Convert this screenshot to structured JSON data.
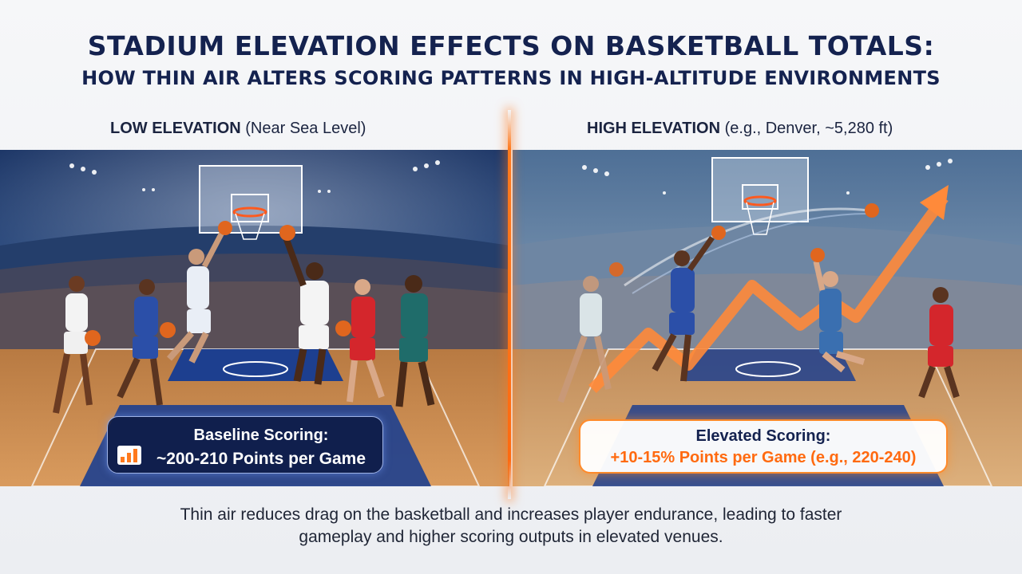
{
  "title": {
    "line1": "STADIUM ELEVATION EFFECTS ON BASKETBALL TOTALS:",
    "line2": "HOW THIN AIR ALTERS SCORING PATTERNS IN HIGH-ALTITUDE ENVIRONMENTS"
  },
  "panels": {
    "left": {
      "label_main": "LOW ELEVATION",
      "label_sub": " (Near Sea Level)",
      "stat_title": "Baseline Scoring:",
      "stat_value": "~200-210 Points per Game",
      "stat_icon": "bar-chart-icon"
    },
    "right": {
      "label_main": "HIGH ELEVATION",
      "label_sub": " (e.g., Denver, ~5,280 ft)",
      "stat_title": "Elevated Scoring:",
      "stat_value": "+10-15% Points per Game (e.g., 220-240)",
      "trend_icon": "trend-up-arrow-icon"
    }
  },
  "caption": {
    "line1": "Thin air reduces drag on the basketball and increases player endurance, leading to faster",
    "line2": "gameplay and higher scoring outputs in elevated venues."
  },
  "colors": {
    "title": "#14224f",
    "accent_orange": "#ff7a1e",
    "stat_left_bg": "#0e1c48",
    "court_wood": "#c98a4e",
    "court_blue": "#1d3f8f"
  }
}
